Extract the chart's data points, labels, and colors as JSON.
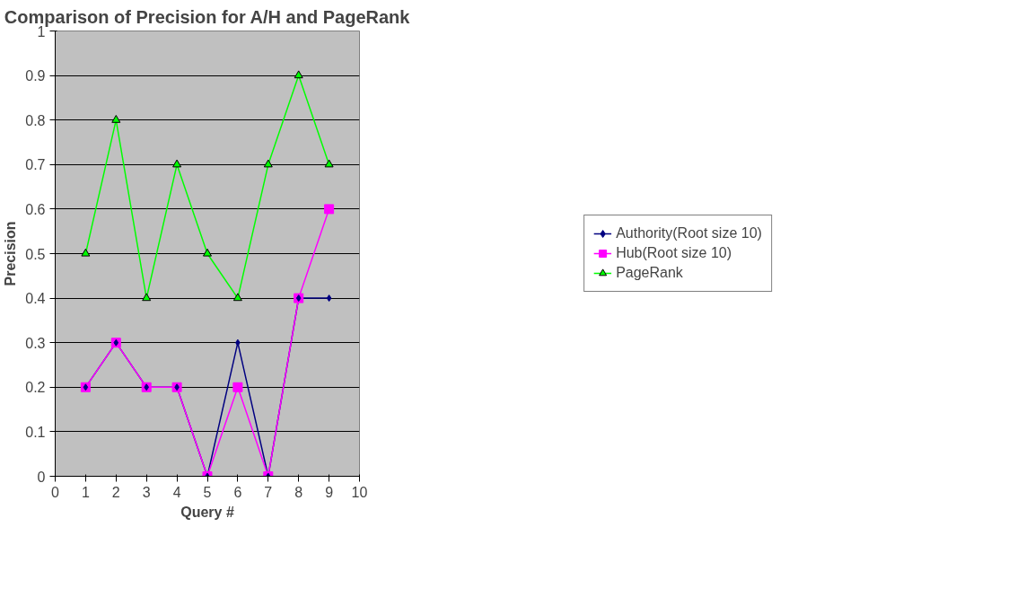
{
  "chart_data": {
    "type": "line",
    "title": "Comparison of Precision for A/H and PageRank",
    "xlabel": "Query #",
    "ylabel": "Precision",
    "x": [
      1,
      2,
      3,
      4,
      5,
      6,
      7,
      8,
      9
    ],
    "xlim": [
      0,
      10
    ],
    "xticks": [
      0,
      1,
      2,
      3,
      4,
      5,
      6,
      7,
      8,
      9,
      10
    ],
    "ylim": [
      0,
      1
    ],
    "yticks": [
      0,
      0.1,
      0.2,
      0.3,
      0.4,
      0.5,
      0.6,
      0.7,
      0.8,
      0.9,
      1
    ],
    "grid": "y",
    "legend": "right",
    "series": [
      {
        "name": "Authority(Root size 10)",
        "color": "#000080",
        "marker": "diamond",
        "values": [
          0.2,
          0.3,
          0.2,
          0.2,
          0,
          0.3,
          0,
          0.4,
          0.4
        ]
      },
      {
        "name": "Hub(Root size 10)",
        "color": "#ff00ff",
        "marker": "square",
        "values": [
          0.2,
          0.3,
          0.2,
          0.2,
          0,
          0.2,
          0,
          0.4,
          0.6
        ]
      },
      {
        "name": "PageRank",
        "color": "#00ff00",
        "marker": "triangle",
        "values": [
          0.5,
          0.8,
          0.4,
          0.7,
          0.5,
          0.4,
          0.7,
          0.9,
          0.7
        ]
      }
    ]
  }
}
